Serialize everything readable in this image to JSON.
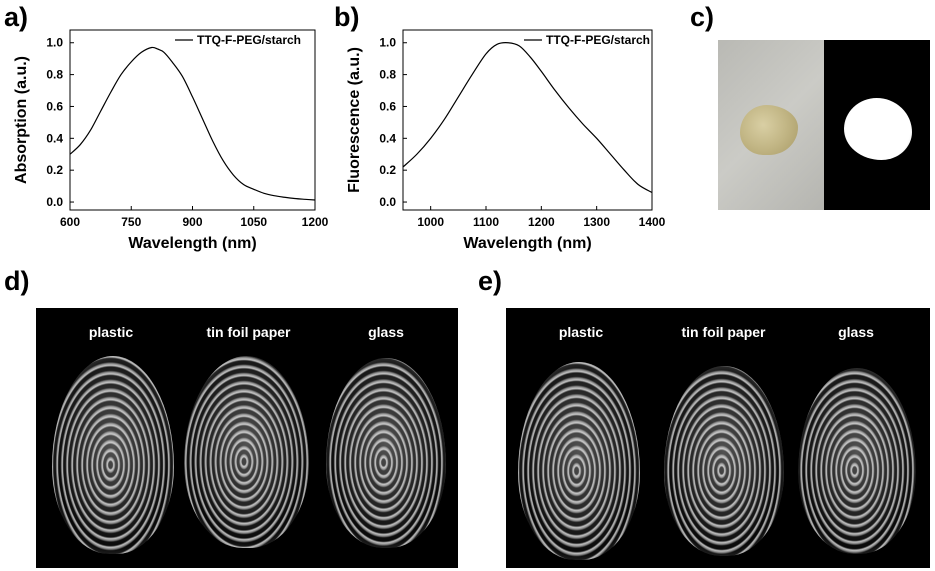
{
  "panels": {
    "a": "a)",
    "b": "b)",
    "c": "c)",
    "d": "d)",
    "e": "e)"
  },
  "chart_data": [
    {
      "type": "line",
      "xlabel": "Wavelength (nm)",
      "ylabel": "Absorption (a.u.)",
      "xlim": [
        600,
        1200
      ],
      "ylim": [
        -0.05,
        1.08
      ],
      "xticks": [
        600,
        750,
        900,
        1050,
        1200
      ],
      "yticks": [
        0.0,
        0.2,
        0.4,
        0.6,
        0.8,
        1.0
      ],
      "ytick_labels": [
        "0.0",
        "0.2",
        "0.4",
        "0.6",
        "0.8",
        "1.0"
      ],
      "legend_position": "top-right",
      "series": [
        {
          "name": "TTQ-F-PEG/starch",
          "x": [
            600,
            625,
            650,
            675,
            700,
            725,
            750,
            775,
            800,
            815,
            830,
            850,
            875,
            900,
            925,
            950,
            975,
            1000,
            1025,
            1050,
            1075,
            1100,
            1125,
            1150,
            1175,
            1200
          ],
          "y": [
            0.3,
            0.36,
            0.45,
            0.57,
            0.69,
            0.8,
            0.88,
            0.94,
            0.97,
            0.96,
            0.94,
            0.88,
            0.79,
            0.66,
            0.52,
            0.38,
            0.26,
            0.17,
            0.11,
            0.08,
            0.055,
            0.04,
            0.03,
            0.022,
            0.017,
            0.013
          ]
        }
      ]
    },
    {
      "type": "line",
      "xlabel": "Wavelength (nm)",
      "ylabel": "Fluorescence (a.u.)",
      "xlim": [
        950,
        1400
      ],
      "ylim": [
        -0.05,
        1.08
      ],
      "xticks": [
        1000,
        1100,
        1200,
        1300,
        1400
      ],
      "yticks": [
        0.0,
        0.2,
        0.4,
        0.6,
        0.8,
        1.0
      ],
      "ytick_labels": [
        "0.0",
        "0.2",
        "0.4",
        "0.6",
        "0.8",
        "1.0"
      ],
      "legend_position": "top-right",
      "series": [
        {
          "name": "TTQ-F-PEG/starch",
          "x": [
            950,
            975,
            1000,
            1025,
            1050,
            1075,
            1100,
            1120,
            1140,
            1160,
            1180,
            1200,
            1225,
            1250,
            1275,
            1300,
            1325,
            1350,
            1375,
            1400
          ],
          "y": [
            0.22,
            0.3,
            0.4,
            0.52,
            0.66,
            0.8,
            0.93,
            0.99,
            1.0,
            0.98,
            0.91,
            0.82,
            0.7,
            0.59,
            0.49,
            0.4,
            0.3,
            0.2,
            0.11,
            0.06
          ]
        }
      ]
    }
  ],
  "fingerprint_panels": [
    {
      "labels": [
        "plastic",
        "tin foil paper",
        "glass"
      ]
    },
    {
      "labels": [
        "plastic",
        "tin foil paper",
        "glass"
      ]
    }
  ]
}
